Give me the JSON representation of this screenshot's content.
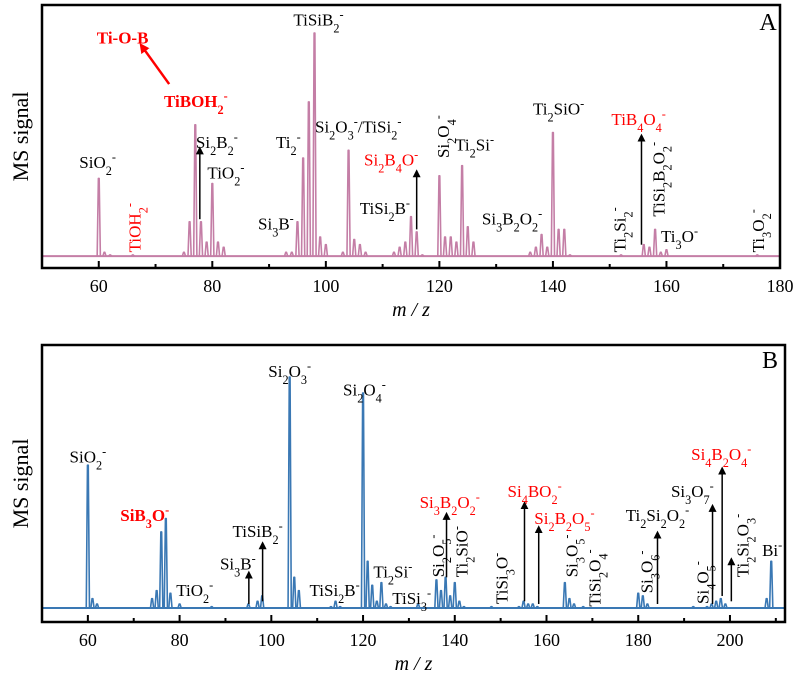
{
  "colors": {
    "panelA": "#c47ea6",
    "panelB": "#3a78b4",
    "highlight": "#ff0000",
    "text": "#000000"
  },
  "chart_data": [
    {
      "type": "line",
      "panel": "A",
      "xlabel": "m / z",
      "ylabel": "MS signal",
      "xlim": [
        50,
        180
      ],
      "xticks": [
        60,
        80,
        100,
        120,
        140,
        160,
        180
      ],
      "ylim": [
        0,
        1
      ],
      "peaks": [
        [
          60,
          0.32
        ],
        [
          61,
          0.03
        ],
        [
          62,
          0.02
        ],
        [
          66,
          0.02
        ],
        [
          75,
          0.03
        ],
        [
          76,
          0.15
        ],
        [
          77,
          0.53
        ],
        [
          78,
          0.15
        ],
        [
          79,
          0.07
        ],
        [
          80,
          0.3
        ],
        [
          81,
          0.07
        ],
        [
          82,
          0.05
        ],
        [
          93,
          0.03
        ],
        [
          94,
          0.03
        ],
        [
          95,
          0.15
        ],
        [
          96,
          0.4
        ],
        [
          97,
          0.62
        ],
        [
          98,
          0.89
        ],
        [
          99,
          0.09
        ],
        [
          100,
          0.06
        ],
        [
          103,
          0.03
        ],
        [
          104,
          0.43
        ],
        [
          105,
          0.08
        ],
        [
          106,
          0.06
        ],
        [
          107,
          0.03
        ],
        [
          112,
          0.03
        ],
        [
          113,
          0.05
        ],
        [
          114,
          0.07
        ],
        [
          115,
          0.17
        ],
        [
          116,
          0.11
        ],
        [
          117,
          0.02
        ],
        [
          120,
          0.33
        ],
        [
          121,
          0.09
        ],
        [
          122,
          0.09
        ],
        [
          123,
          0.07
        ],
        [
          124,
          0.37
        ],
        [
          125,
          0.13
        ],
        [
          126,
          0.07
        ],
        [
          136,
          0.03
        ],
        [
          137,
          0.05
        ],
        [
          138,
          0.1
        ],
        [
          139,
          0.05
        ],
        [
          140,
          0.5
        ],
        [
          141,
          0.12
        ],
        [
          142,
          0.12
        ],
        [
          143,
          0.02
        ],
        [
          152,
          0.02
        ],
        [
          156,
          0.06
        ],
        [
          157,
          0.05
        ],
        [
          158,
          0.12
        ],
        [
          159,
          0.03
        ],
        [
          160,
          0.04
        ],
        [
          176,
          0.02
        ]
      ],
      "labels": [
        {
          "text": "Ti-O-B",
          "x": 64.2,
          "y": 0.85,
          "red": true,
          "bold": true,
          "plain": true
        },
        {
          "text": "TiBOH2-",
          "x": 77.1,
          "y": 0.6,
          "red": true,
          "bold": true
        },
        {
          "text": "TiOH2-",
          "x": 66.3,
          "y": 0.03,
          "red": true,
          "rot": true
        },
        {
          "text": "SiO2-",
          "x": 59.8,
          "y": 0.36
        },
        {
          "text": "Si2B2-",
          "x": 80.8,
          "y": 0.44
        },
        {
          "text": "TiO2-",
          "x": 82.4,
          "y": 0.32
        },
        {
          "text": "Ti2-",
          "x": 93.4,
          "y": 0.44
        },
        {
          "text": "TiSiB2-",
          "x": 98.7,
          "y": 0.92
        },
        {
          "text": "Si3B-",
          "x": 91.2,
          "y": 0.12
        },
        {
          "text": "Si2O3-/TiSi2-",
          "x": 105.7,
          "y": 0.5
        },
        {
          "text": "Si2B4O-",
          "x": 111.5,
          "y": 0.37,
          "red": true
        },
        {
          "text": "TiSi2B-",
          "x": 110.4,
          "y": 0.18
        },
        {
          "text": "Si2O4-",
          "x": 120.6,
          "y": 0.4,
          "rot": true
        },
        {
          "text": "Ti2Si-",
          "x": 126.2,
          "y": 0.43
        },
        {
          "text": "Ti2SiO-",
          "x": 141.0,
          "y": 0.57
        },
        {
          "text": "TiB4O4-",
          "x": 155.1,
          "y": 0.53,
          "red": true
        },
        {
          "text": "TiSi2B2O2-",
          "x": 158.6,
          "y": 0.17,
          "rot": true
        },
        {
          "text": "Si3B2O2-",
          "x": 132.8,
          "y": 0.14
        },
        {
          "text": "Ti2Si2-",
          "x": 151.7,
          "y": 0.03,
          "rot": true
        },
        {
          "text": "Ti3O-",
          "x": 162.3,
          "y": 0.07
        },
        {
          "text": "Ti3O2-",
          "x": 176.1,
          "y": 0.03,
          "rot": true
        }
      ],
      "arrows": [
        {
          "from": [
            72.4,
            0.69
          ],
          "to": [
            67.7,
            0.835
          ],
          "red": true
        },
        {
          "from": [
            77.8,
            0.16
          ],
          "to": [
            77.8,
            0.43
          ]
        },
        {
          "from": [
            116,
            0.12
          ],
          "to": [
            116,
            0.34
          ]
        },
        {
          "from": [
            155.6,
            0.06
          ],
          "to": [
            155.6,
            0.48
          ]
        }
      ]
    },
    {
      "type": "line",
      "panel": "B",
      "xlabel": "m / z",
      "ylabel": "MS signal",
      "xlim": [
        50,
        212
      ],
      "xticks": [
        60,
        80,
        100,
        120,
        140,
        160,
        180,
        200
      ],
      "ylim": [
        0,
        1
      ],
      "peaks": [
        [
          60,
          0.55
        ],
        [
          61,
          0.05
        ],
        [
          62,
          0.03
        ],
        [
          74,
          0.05
        ],
        [
          75,
          0.08
        ],
        [
          76,
          0.3
        ],
        [
          77,
          0.35
        ],
        [
          78,
          0.07
        ],
        [
          80,
          0.03
        ],
        [
          87,
          0.02
        ],
        [
          95,
          0.03
        ],
        [
          97,
          0.04
        ],
        [
          98,
          0.06
        ],
        [
          104,
          0.88
        ],
        [
          105,
          0.13
        ],
        [
          106,
          0.08
        ],
        [
          113,
          0.02
        ],
        [
          114,
          0.04
        ],
        [
          115,
          0.02
        ],
        [
          120,
          0.82
        ],
        [
          121,
          0.19
        ],
        [
          122,
          0.1
        ],
        [
          123,
          0.04
        ],
        [
          124,
          0.11
        ],
        [
          125,
          0.03
        ],
        [
          126,
          0.02
        ],
        [
          132,
          0.03
        ],
        [
          136,
          0.12
        ],
        [
          137,
          0.08
        ],
        [
          138,
          0.13
        ],
        [
          139,
          0.06
        ],
        [
          140,
          0.11
        ],
        [
          141,
          0.04
        ],
        [
          142,
          0.02
        ],
        [
          148,
          0.02
        ],
        [
          154,
          0.02
        ],
        [
          155,
          0.04
        ],
        [
          156,
          0.03
        ],
        [
          157,
          0.03
        ],
        [
          158,
          0.02
        ],
        [
          164,
          0.11
        ],
        [
          165,
          0.05
        ],
        [
          166,
          0.03
        ],
        [
          168,
          0.02
        ],
        [
          180,
          0.07
        ],
        [
          181,
          0.06
        ],
        [
          182,
          0.03
        ],
        [
          192,
          0.02
        ],
        [
          195,
          0.02
        ],
        [
          196,
          0.03
        ],
        [
          197,
          0.04
        ],
        [
          198,
          0.05
        ],
        [
          199,
          0.03
        ],
        [
          208,
          0.05
        ],
        [
          209,
          0.19
        ]
      ],
      "labels": [
        {
          "text": "SiO2-",
          "x": 60,
          "y": 0.56
        },
        {
          "text": "SiB3O-",
          "x": 72.4,
          "y": 0.34,
          "red": true,
          "bold": true
        },
        {
          "text": "TiO2-",
          "x": 83.3,
          "y": 0.06
        },
        {
          "text": "Si3B-",
          "x": 92.7,
          "y": 0.16
        },
        {
          "text": "TiSiB2-",
          "x": 97.0,
          "y": 0.28
        },
        {
          "text": "Si2O3-",
          "x": 104,
          "y": 0.88
        },
        {
          "text": "Si2O4-",
          "x": 120.3,
          "y": 0.81
        },
        {
          "text": "TiSi2B-",
          "x": 113.8,
          "y": 0.06
        },
        {
          "text": "Ti2Si-",
          "x": 126.5,
          "y": 0.13
        },
        {
          "text": "TiSi3-",
          "x": 130.6,
          "y": 0.03
        },
        {
          "text": "Si2O5-",
          "x": 136.3,
          "y": 0.13,
          "rot": true
        },
        {
          "text": "Ti2SiO-",
          "x": 141.5,
          "y": 0.13,
          "rot": true
        },
        {
          "text": "Si3B2O2-",
          "x": 138.9,
          "y": 0.39,
          "red": true
        },
        {
          "text": "TiSi3O-",
          "x": 150.2,
          "y": 0.03,
          "rot": true
        },
        {
          "text": "Si4BO2-",
          "x": 157.4,
          "y": 0.43,
          "red": true
        },
        {
          "text": "Si2B2O5-",
          "x": 163.9,
          "y": 0.33,
          "red": true
        },
        {
          "text": "Si3O5-",
          "x": 165.4,
          "y": 0.13,
          "rot": true
        },
        {
          "text": "TiSi2O4-",
          "x": 170.5,
          "y": 0.02,
          "rot": true
        },
        {
          "text": "Si3O6-",
          "x": 181.8,
          "y": 0.07,
          "rot": true
        },
        {
          "text": "Ti2Si2O2-",
          "x": 184.2,
          "y": 0.34
        },
        {
          "text": "Si3O7-",
          "x": 191.8,
          "y": 0.43
        },
        {
          "text": "Si4B2O4-",
          "x": 198.1,
          "y": 0.57,
          "red": true
        },
        {
          "text": "Si4O5-",
          "x": 194.0,
          "y": 0.03,
          "rot": true
        },
        {
          "text": "Ti2Si2O3-",
          "x": 202.7,
          "y": 0.13,
          "rot": true
        },
        {
          "text": "Bi-",
          "x": 209.2,
          "y": 0.21
        }
      ],
      "arrows": [
        {
          "from": [
            95.1,
            0.03
          ],
          "to": [
            95.1,
            0.14
          ]
        },
        {
          "from": [
            98.1,
            0.04
          ],
          "to": [
            98.1,
            0.25
          ]
        },
        {
          "from": [
            138.2,
            0.13
          ],
          "to": [
            138.2,
            0.36
          ]
        },
        {
          "from": [
            155.2,
            0.04
          ],
          "to": [
            155.2,
            0.4
          ]
        },
        {
          "from": [
            158.3,
            0.03
          ],
          "to": [
            158.3,
            0.31
          ]
        },
        {
          "from": [
            184.2,
            0.03
          ],
          "to": [
            184.2,
            0.29
          ]
        },
        {
          "from": [
            196.2,
            0.03
          ],
          "to": [
            196.2,
            0.39
          ]
        },
        {
          "from": [
            198.3,
            0.06
          ],
          "to": [
            198.3,
            0.53
          ]
        },
        {
          "from": [
            200.3,
            0.04
          ],
          "to": [
            200.3,
            0.19
          ]
        }
      ]
    }
  ]
}
